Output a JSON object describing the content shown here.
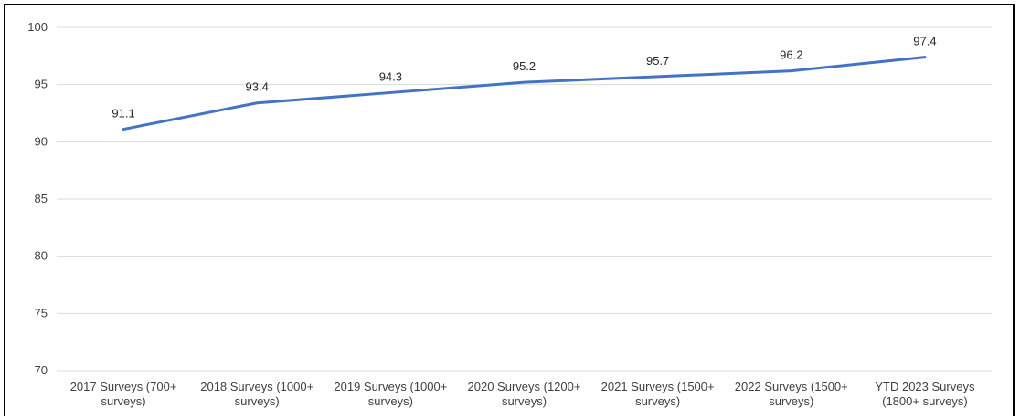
{
  "chart_data": {
    "type": "line",
    "categories": [
      [
        "2017 Surveys (700+",
        "surveys)"
      ],
      [
        "2018 Surveys (1000+",
        "surveys)"
      ],
      [
        "2019 Surveys (1000+",
        "surveys)"
      ],
      [
        "2020 Surveys (1200+",
        "surveys)"
      ],
      [
        "2021 Surveys (1500+",
        "surveys)"
      ],
      [
        "2022 Surveys (1500+",
        "surveys)"
      ],
      [
        "YTD 2023 Surveys",
        "(1800+ surveys)"
      ]
    ],
    "series": [
      {
        "values": [
          91.1,
          93.4,
          94.3,
          95.2,
          95.7,
          96.2,
          97.4
        ],
        "color": "#4472c4"
      }
    ],
    "data_labels": [
      "91.1",
      "93.4",
      "94.3",
      "95.2",
      "95.7",
      "96.2",
      "97.4"
    ],
    "y_ticks": [
      "70",
      "75",
      "80",
      "85",
      "90",
      "95",
      "100"
    ],
    "ylim": [
      70,
      100
    ],
    "grid": true,
    "gridline_color": "#d9d9d9",
    "legend": "none"
  }
}
